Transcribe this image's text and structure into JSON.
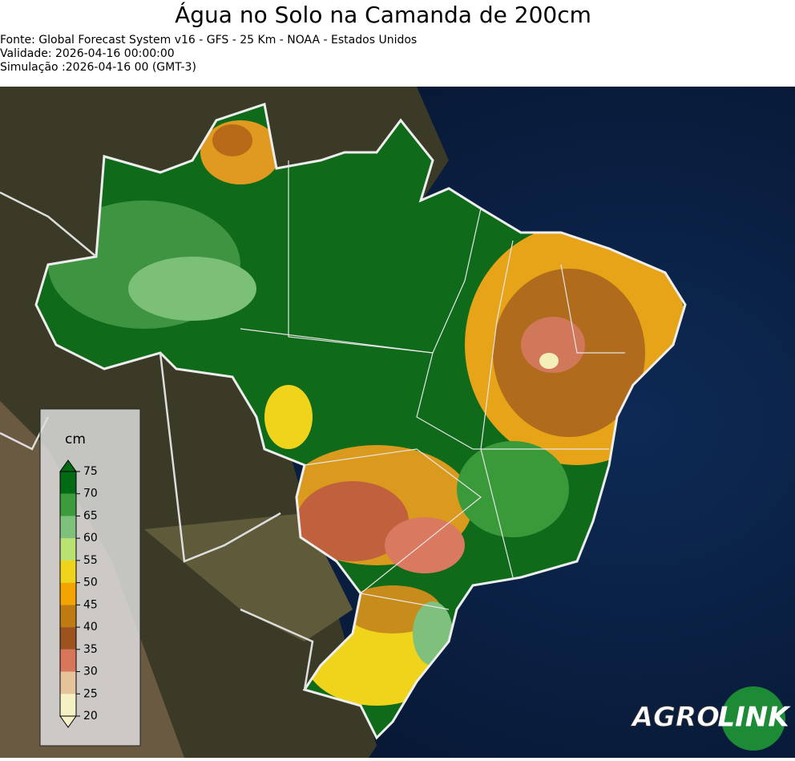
{
  "header": {
    "title": "Água no Solo na Camanda de 200cm",
    "lines": [
      "Fonte: Global Forecast System v16 - GFS - 25 Km - NOAA - Estados Unidos",
      "Validade: 2026-04-16 00:00:00",
      "Simulação :2026-04-16 00 (GMT-3)"
    ]
  },
  "legend": {
    "unit": "cm",
    "ticks": [
      20,
      25,
      30,
      35,
      40,
      45,
      50,
      55,
      60,
      65,
      70,
      75
    ],
    "colors": [
      "#f6f1c4",
      "#e7c39c",
      "#d8765c",
      "#9c5320",
      "#bf7a12",
      "#f2a400",
      "#f0d41c",
      "#b9e273",
      "#7fc07c",
      "#3c9b3a",
      "#006a14"
    ]
  },
  "logo": {
    "parts": [
      "AGRO",
      "LINK"
    ]
  }
}
